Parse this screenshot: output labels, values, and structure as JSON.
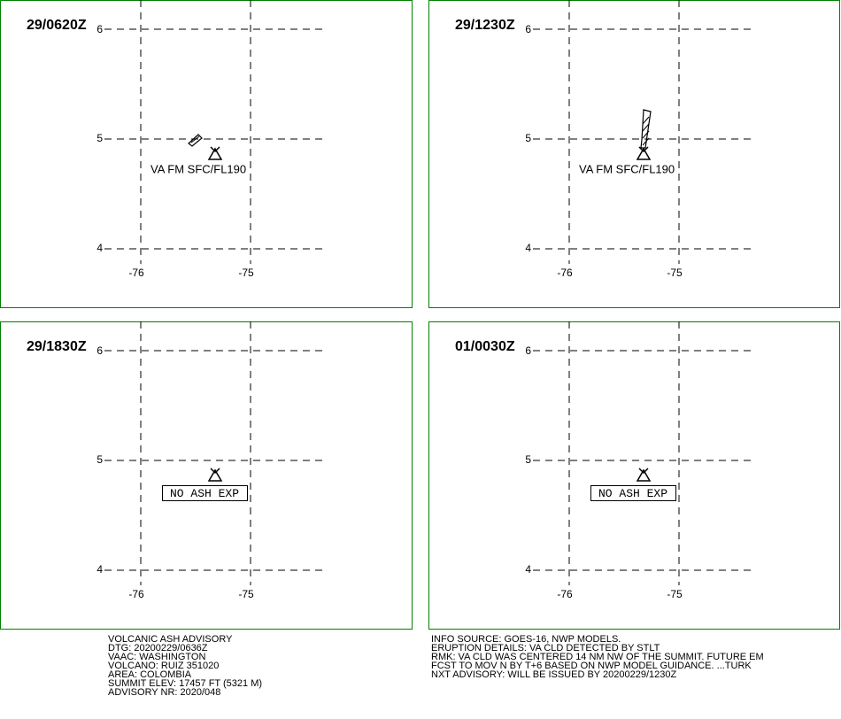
{
  "panels": [
    {
      "time": "29/0620Z",
      "lat_ticks": [
        6,
        5,
        4
      ],
      "lon_ticks": [
        -76,
        -75
      ],
      "annotation": "VA FM SFC/FL190"
    },
    {
      "time": "29/1230Z",
      "lat_ticks": [
        6,
        5,
        4
      ],
      "lon_ticks": [
        -76,
        -75
      ],
      "annotation": "VA FM SFC/FL190"
    },
    {
      "time": "29/1830Z",
      "lat_ticks": [
        6,
        5,
        4
      ],
      "lon_ticks": [
        -76,
        -75
      ],
      "annotation": "NO ASH EXP"
    },
    {
      "time": "01/0030Z",
      "lat_ticks": [
        6,
        5,
        4
      ],
      "lon_ticks": [
        -76,
        -75
      ],
      "annotation": "NO ASH EXP"
    }
  ],
  "advisory_left": [
    "VOLCANIC ASH ADVISORY",
    "DTG: 20200229/0636Z",
    "VAAC: WASHINGTON",
    "VOLCANO: RUIZ 351020",
    "AREA: COLOMBIA",
    "SUMMIT ELEV: 17457 FT (5321 M)",
    "ADVISORY NR: 2020/048"
  ],
  "advisory_right": [
    "INFO SOURCE: GOES-16, NWP MODELS.",
    "ERUPTION DETAILS: VA CLD DETECTED BY STLT",
    "RMK: VA CLD WAS CENTERED 14 NM NW OF THE SUMMIT. FUTURE EM",
    "FCST TO MOV N BY T+6 BASED ON NWP MODEL GUIDANCE. ...TURK",
    "NXT ADVISORY: WILL BE ISSUED BY 20200229/1230Z"
  ]
}
